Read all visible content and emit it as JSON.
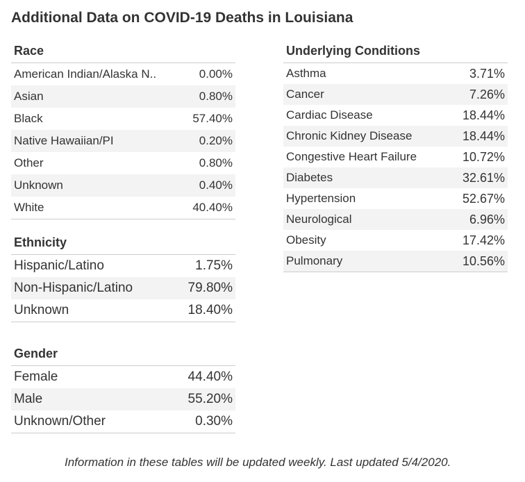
{
  "title": "Additional Data on COVID-19 Deaths in Louisiana",
  "footnote": "Information in these tables will be updated weekly. Last updated 5/4/2020.",
  "chart_data": [
    {
      "type": "table",
      "title": "Race",
      "rows": [
        {
          "label": "American Indian/Alaska N..",
          "value": "0.00%"
        },
        {
          "label": "Asian",
          "value": "0.80%"
        },
        {
          "label": "Black",
          "value": "57.40%"
        },
        {
          "label": "Native Hawaiian/PI",
          "value": "0.20%"
        },
        {
          "label": "Other",
          "value": "0.80%"
        },
        {
          "label": "Unknown",
          "value": "0.40%"
        },
        {
          "label": "White",
          "value": "40.40%"
        }
      ]
    },
    {
      "type": "table",
      "title": "Ethnicity",
      "rows": [
        {
          "label": "Hispanic/Latino",
          "value": "1.75%"
        },
        {
          "label": "Non-Hispanic/Latino",
          "value": "79.80%"
        },
        {
          "label": "Unknown",
          "value": "18.40%"
        }
      ]
    },
    {
      "type": "table",
      "title": "Gender",
      "rows": [
        {
          "label": "Female",
          "value": "44.40%"
        },
        {
          "label": "Male",
          "value": "55.20%"
        },
        {
          "label": "Unknown/Other",
          "value": "0.30%"
        }
      ]
    },
    {
      "type": "table",
      "title": "Underlying Conditions",
      "rows": [
        {
          "label": "Asthma",
          "value": "3.71%"
        },
        {
          "label": "Cancer",
          "value": "7.26%"
        },
        {
          "label": "Cardiac Disease",
          "value": "18.44%"
        },
        {
          "label": "Chronic Kidney Disease",
          "value": "18.44%"
        },
        {
          "label": "Congestive Heart Failure",
          "value": "10.72%"
        },
        {
          "label": "Diabetes",
          "value": "32.61%"
        },
        {
          "label": "Hypertension",
          "value": "52.67%"
        },
        {
          "label": "Neurological",
          "value": "6.96%"
        },
        {
          "label": "Obesity",
          "value": "17.42%"
        },
        {
          "label": "Pulmonary",
          "value": "10.56%"
        }
      ]
    }
  ]
}
